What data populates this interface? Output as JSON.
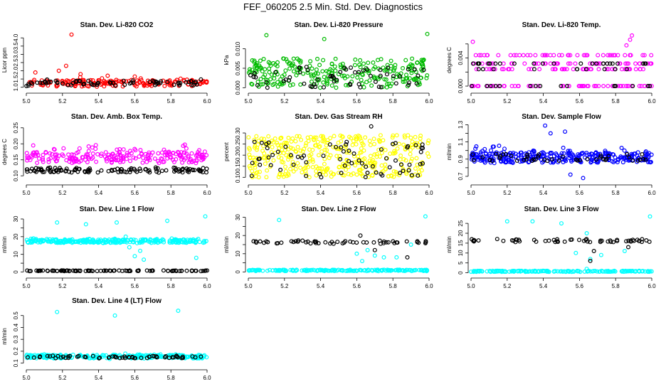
{
  "page": {
    "title": "FEF_060205  2.5 Min. Std. Dev. Diagnostics"
  },
  "chart_data": [
    {
      "type": "scatter",
      "title": "Stan. Dev. Li-820 CO2",
      "ylabel": "Licor ppm",
      "xlim": [
        5.0,
        6.0
      ],
      "ylim": [
        0.9,
        4.4
      ],
      "x_ticks": [
        5.0,
        5.2,
        5.4,
        5.6,
        5.8,
        6.0
      ],
      "y_ticks": [
        1.0,
        1.5,
        2.0,
        2.5,
        3.0,
        3.5,
        4.0
      ],
      "y_tick_labels": [
        "1.0",
        "1.5",
        "2.0",
        "2.5",
        "3.0",
        "3.5",
        "4.0"
      ],
      "series": [
        {
          "color": "#ff0000",
          "band": [
            1.05,
            1.45
          ],
          "spread": 0.3,
          "n": 180,
          "outliers": [
            [
              5.25,
              4.2
            ],
            [
              5.22,
              2.3
            ],
            [
              5.18,
              2.0
            ],
            [
              5.05,
              1.9
            ],
            [
              5.3,
              1.8
            ],
            [
              5.45,
              1.7
            ],
            [
              5.6,
              1.65
            ]
          ]
        },
        {
          "color": "#000000",
          "band": [
            1.1,
            1.4
          ],
          "spread": 0.15,
          "n": 70,
          "outliers": []
        }
      ]
    },
    {
      "type": "scatter",
      "title": "Stan. Dev. Li-820 Pressure",
      "ylabel": "kPa",
      "xlim": [
        5.0,
        6.0
      ],
      "ylim": [
        -0.0003,
        0.0145
      ],
      "x_ticks": [
        5.0,
        5.2,
        5.4,
        5.6,
        5.8,
        6.0
      ],
      "y_ticks": [
        0.0,
        0.005,
        0.01
      ],
      "y_tick_labels": [
        "0.000",
        "0.005",
        "0.010"
      ],
      "series": [
        {
          "color": "#00bb00",
          "band": [
            0.0,
            0.0075
          ],
          "spread": 0.0,
          "n": 260,
          "outliers": [
            [
              5.1,
              0.0135
            ],
            [
              5.99,
              0.0138
            ],
            [
              5.42,
              0.0125
            ]
          ]
        },
        {
          "color": "#000000",
          "band": [
            0.0,
            0.0055
          ],
          "spread": 0.0,
          "n": 60,
          "outliers": []
        }
      ]
    },
    {
      "type": "scatter",
      "title": "Stan. Dev. Li-820 Temp.",
      "ylabel": "degrees C",
      "xlim": [
        5.0,
        6.0
      ],
      "ylim": [
        -0.0004,
        0.0078
      ],
      "x_ticks": [
        5.0,
        5.2,
        5.4,
        5.6,
        5.8,
        6.0
      ],
      "y_ticks": [
        0.0,
        0.002,
        0.004,
        0.006
      ],
      "y_tick_labels": [
        "0.000",
        "",
        "0.004",
        ""
      ],
      "levels": [
        0.0,
        0.0024,
        0.0032,
        0.0044
      ],
      "series": [
        {
          "color": "#ff00ff",
          "band": [
            0.0,
            0.0044
          ],
          "spread": 0.0,
          "n": 200,
          "outliers": [
            [
              5.01,
              0.0063
            ],
            [
              5.88,
              0.0066
            ],
            [
              5.89,
              0.0072
            ],
            [
              5.86,
              0.0058
            ]
          ]
        },
        {
          "color": "#000000",
          "band": [
            0.0,
            0.0032
          ],
          "spread": 0.0,
          "n": 50,
          "outliers": []
        }
      ]
    },
    {
      "type": "scatter",
      "title": "Stan. Dev. Amb. Box Temp.",
      "ylabel": "degrees C",
      "xlim": [
        5.0,
        6.0
      ],
      "ylim": [
        0.085,
        0.265
      ],
      "x_ticks": [
        5.0,
        5.2,
        5.4,
        5.6,
        5.8,
        6.0
      ],
      "y_ticks": [
        0.1,
        0.15,
        0.2,
        0.25
      ],
      "y_tick_labels": [
        "0.10",
        "0.15",
        "0.20",
        "0.25"
      ],
      "series": [
        {
          "color": "#ff00ff",
          "band": [
            0.14,
            0.175
          ],
          "spread": 0.04,
          "n": 230,
          "outliers": []
        },
        {
          "color": "#000000",
          "band": [
            0.11,
            0.125
          ],
          "spread": 0.01,
          "n": 120,
          "outliers": []
        }
      ]
    },
    {
      "type": "scatter",
      "title": "Stan. Dev. Gas Stream RH",
      "ylabel": "percent",
      "xlim": [
        5.0,
        6.0
      ],
      "ylim": [
        0.085,
        0.345
      ],
      "x_ticks": [
        5.0,
        5.2,
        5.4,
        5.6,
        5.8,
        6.0
      ],
      "y_ticks": [
        0.1,
        0.15,
        0.2,
        0.25,
        0.3
      ],
      "y_tick_labels": [
        "0.10",
        "0.15",
        "0.20",
        "0.25",
        "0.30"
      ],
      "series": [
        {
          "color": "#ffff00",
          "band": [
            0.1,
            0.29
          ],
          "spread": 0.0,
          "n": 380,
          "outliers": []
        },
        {
          "color": "#000000",
          "band": [
            0.1,
            0.26
          ],
          "spread": 0.0,
          "n": 70,
          "outliers": [
            [
              5.68,
              0.33
            ]
          ]
        }
      ]
    },
    {
      "type": "scatter",
      "title": "Stan. Dev. Sample Flow",
      "ylabel": "ml/min",
      "xlim": [
        5.0,
        6.0
      ],
      "ylim": [
        0.65,
        1.32
      ],
      "x_ticks": [
        5.0,
        5.2,
        5.4,
        5.6,
        5.8,
        6.0
      ],
      "y_ticks": [
        0.7,
        0.8,
        0.9,
        1.0,
        1.1,
        1.2,
        1.3
      ],
      "y_tick_labels": [
        "0.7",
        "",
        "0.9",
        "",
        "1.1",
        "",
        "1.3"
      ],
      "series": [
        {
          "color": "#0000ff",
          "band": [
            0.86,
            0.98
          ],
          "spread": 0.12,
          "n": 320,
          "outliers": [
            [
              5.41,
              1.29
            ],
            [
              5.44,
              1.2
            ],
            [
              5.52,
              1.22
            ],
            [
              5.55,
              0.72
            ],
            [
              5.62,
              0.68
            ]
          ]
        },
        {
          "color": "#000000",
          "band": [
            0.88,
            0.96
          ],
          "spread": 0.03,
          "n": 45,
          "outliers": []
        }
      ]
    },
    {
      "type": "scatter",
      "title": "Stan. Dev. Line 1 Flow",
      "ylabel": "ml/min",
      "xlim": [
        5.0,
        6.0
      ],
      "ylim": [
        -1,
        32
      ],
      "x_ticks": [
        5.0,
        5.2,
        5.4,
        5.6,
        5.8,
        6.0
      ],
      "y_ticks": [
        0,
        5,
        10,
        15,
        20,
        25,
        30
      ],
      "y_tick_labels": [
        "0",
        "",
        "10",
        "",
        "20",
        "",
        "30"
      ],
      "series": [
        {
          "color": "#00ffff",
          "band": [
            16.5,
            18.5
          ],
          "spread": 1.0,
          "n": 280,
          "outliers": [
            [
              5.17,
              28
            ],
            [
              5.33,
              27
            ],
            [
              5.5,
              28
            ],
            [
              5.78,
              29
            ],
            [
              5.99,
              31.5
            ],
            [
              5.55,
              20
            ],
            [
              5.6,
              9
            ],
            [
              5.57,
              14
            ],
            [
              5.63,
              12
            ],
            [
              5.94,
              8
            ],
            [
              5.65,
              7
            ]
          ]
        },
        {
          "color": "#000000",
          "band": [
            0.5,
            0.9
          ],
          "spread": 0.0,
          "n": 95,
          "outliers": []
        }
      ]
    },
    {
      "type": "scatter",
      "title": "Stan. Dev. Line 2 Flow",
      "ylabel": "ml/min",
      "xlim": [
        5.0,
        6.0
      ],
      "ylim": [
        -1,
        31
      ],
      "x_ticks": [
        5.0,
        5.2,
        5.4,
        5.6,
        5.8,
        6.0
      ],
      "y_ticks": [
        0,
        5,
        10,
        15,
        20,
        25,
        30
      ],
      "y_tick_labels": [
        "0",
        "",
        "10",
        "",
        "20",
        "",
        "30"
      ],
      "series": [
        {
          "color": "#00ffff",
          "band": [
            0.5,
            1.2
          ],
          "spread": 0.0,
          "n": 180,
          "outliers": [
            [
              5.17,
              28.5
            ],
            [
              5.98,
              30.5
            ],
            [
              5.63,
              6
            ],
            [
              5.7,
              9
            ],
            [
              5.66,
              12
            ],
            [
              5.6,
              10
            ],
            [
              5.75,
              8
            ],
            [
              5.82,
              8
            ],
            [
              5.9,
              15
            ]
          ]
        },
        {
          "color": "#000000",
          "band": [
            15.5,
            17
          ],
          "spread": 0.5,
          "n": 55,
          "outliers": [
            [
              5.62,
              20
            ],
            [
              5.7,
              12
            ],
            [
              5.88,
              8
            ]
          ]
        }
      ]
    },
    {
      "type": "scatter",
      "title": "Stan. Dev. Line 3 Flow",
      "ylabel": "ml/min",
      "xlim": [
        5.0,
        6.0
      ],
      "ylim": [
        -0.5,
        29
      ],
      "x_ticks": [
        5.0,
        5.2,
        5.4,
        5.6,
        5.8,
        6.0
      ],
      "y_ticks": [
        0,
        5,
        10,
        15,
        20,
        25
      ],
      "y_tick_labels": [
        "0",
        "5",
        "10",
        "15",
        "20",
        "25"
      ],
      "series": [
        {
          "color": "#00ffff",
          "band": [
            0.5,
            1.0
          ],
          "spread": 0.0,
          "n": 170,
          "outliers": [
            [
              5.2,
              26
            ],
            [
              5.34,
              26
            ],
            [
              5.5,
              25
            ],
            [
              5.99,
              28.5
            ],
            [
              5.64,
              20
            ],
            [
              5.66,
              7
            ],
            [
              5.72,
              9
            ],
            [
              5.58,
              10
            ],
            [
              5.85,
              11
            ],
            [
              5.64,
              2
            ]
          ]
        },
        {
          "color": "#000000",
          "band": [
            15.5,
            17
          ],
          "spread": 0.4,
          "n": 55,
          "outliers": [
            [
              5.66,
              6
            ],
            [
              5.68,
              11
            ],
            [
              5.87,
              13
            ]
          ]
        }
      ]
    },
    {
      "type": "scatter",
      "title": "Stan. Dev. Line 4 (LT) Flow",
      "ylabel": "ml/min",
      "xlim": [
        5.0,
        6.0
      ],
      "ylim": [
        0.08,
        0.57
      ],
      "x_ticks": [
        5.0,
        5.2,
        5.4,
        5.6,
        5.8,
        6.0
      ],
      "y_ticks": [
        0.1,
        0.2,
        0.3,
        0.4,
        0.5
      ],
      "y_tick_labels": [
        "0.1",
        "0.2",
        "0.3",
        "0.4",
        "0.5"
      ],
      "series": [
        {
          "color": "#00ffff",
          "band": [
            0.14,
            0.17
          ],
          "spread": 0.02,
          "n": 260,
          "outliers": [
            [
              5.17,
              0.53
            ],
            [
              5.49,
              0.5
            ],
            [
              5.84,
              0.54
            ]
          ]
        },
        {
          "color": "#000000",
          "band": [
            0.14,
            0.16
          ],
          "spread": 0.01,
          "n": 60,
          "outliers": []
        }
      ]
    }
  ]
}
